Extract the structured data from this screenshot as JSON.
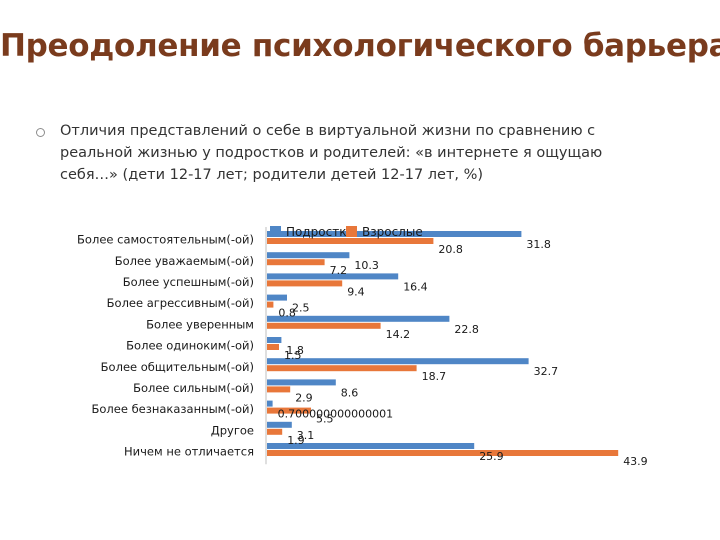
{
  "slide": {
    "title": "Преодоление психологического барьера",
    "bullet": "Отличия представлений о себе в виртуальной жизни по сравнению с реальной жизнью у подростков и родителей: «в интернете я ощущаю себя…» (дети 12-17 лет; родители детей 12-17 лет, %)"
  },
  "chart_data": {
    "type": "bar",
    "orientation": "horizontal",
    "categories": [
      "Более самостоятельным(-ой)",
      "Более уважаемым(-ой)",
      "Более успешным(-ой)",
      "Более агрессивным(-ой)",
      "Более уверенным",
      "Более одиноким(-ой)",
      "Более общительным(-ой)",
      "Более сильным(-ой)",
      "Более безнаказанным(-ой)",
      "Другое",
      "Ничем не отличается"
    ],
    "series": [
      {
        "name": "Подростки",
        "color": "#4f86c6",
        "values": [
          31.8,
          10.3,
          16.4,
          2.5,
          22.8,
          1.8,
          32.7,
          8.6,
          0.7,
          3.1,
          25.9
        ],
        "labels": [
          "31.8",
          "10.3",
          "16.4",
          "2.5",
          "22.8",
          "1.8",
          "32.7",
          "8.6",
          "0.700000000000001",
          "3.1",
          "25.9"
        ]
      },
      {
        "name": "Взрослые",
        "color": "#e8773a",
        "values": [
          20.8,
          7.2,
          9.4,
          0.8,
          14.2,
          1.5,
          18.7,
          2.9,
          5.5,
          1.9,
          43.9
        ],
        "labels": [
          "20.8",
          "7.2",
          "9.4",
          "0.8",
          "14.2",
          "1.5",
          "18.7",
          "2.9",
          "5.5",
          "1.9",
          "43.9"
        ]
      }
    ],
    "legend": "top-overlapping",
    "grid": false,
    "xlim": [
      0,
      45
    ]
  }
}
